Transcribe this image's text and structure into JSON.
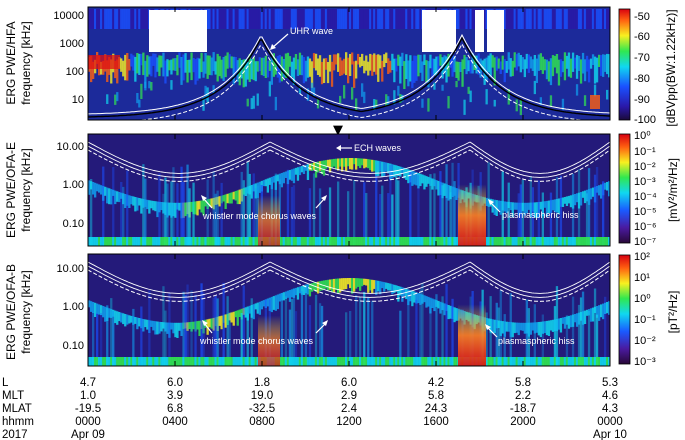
{
  "chart_data": [
    {
      "type": "heatmap",
      "panel": "HFA",
      "ylabel_lines": [
        "ERG PWE/HFA",
        "frequency [kHz]"
      ],
      "yscale": "log",
      "yticks": [
        "10000",
        "1000",
        "100",
        "10"
      ],
      "ylim": [
        2,
        20000
      ],
      "colorbar_label": "[dBVpp(BW:1.22kHz)]",
      "colorbar_ticks": [
        "-50",
        "-60",
        "-70",
        "-80",
        "-90",
        "-100"
      ],
      "colorbar_range": [
        -100,
        -50
      ],
      "annotations": [
        {
          "text": "UHR wave"
        }
      ],
      "data_gaps_hhmm": [
        [
          "0340",
          "0620"
        ],
        [
          "1420",
          "1545"
        ],
        [
          "1725",
          "1750"
        ],
        [
          "1805",
          "1840"
        ]
      ]
    },
    {
      "type": "heatmap",
      "panel": "OFA-E",
      "ylabel_lines": [
        "ERG PWE/OFA-E",
        "frequency [kHz]"
      ],
      "yscale": "log",
      "yticks": [
        "10.00",
        "1.00",
        "0.10"
      ],
      "ylim": [
        0.05,
        20
      ],
      "colorbar_label": "[mV²/m²/Hz]",
      "colorbar_ticks": [
        "10⁰",
        "10⁻¹",
        "10⁻²",
        "10⁻³",
        "10⁻⁴",
        "10⁻⁵",
        "10⁻⁶",
        "10⁻⁷"
      ],
      "colorbar_range": [
        1e-07,
        1
      ],
      "annotations": [
        {
          "text": "ECH waves"
        },
        {
          "text": "whistler mode chorus waves"
        },
        {
          "text": "plasmaspheric hiss"
        }
      ]
    },
    {
      "type": "heatmap",
      "panel": "OFA-B",
      "ylabel_lines": [
        "ERG PWE/OFA-B",
        "frequency [kHz]"
      ],
      "yscale": "log",
      "yticks": [
        "10.00",
        "1.00",
        "0.10"
      ],
      "ylim": [
        0.05,
        20
      ],
      "colorbar_label": "[pT²/Hz]",
      "colorbar_ticks": [
        "10²",
        "10¹",
        "10⁰",
        "10⁻¹",
        "10⁻²",
        "10⁻³"
      ],
      "colorbar_range": [
        0.001,
        100
      ],
      "annotations": [
        {
          "text": "whistler mode chorus waves"
        },
        {
          "text": "plasmaspheric hiss"
        }
      ]
    }
  ],
  "ephemeris": {
    "row_labels": [
      "L",
      "MLT",
      "MLAT",
      "hhmm",
      "2017"
    ],
    "columns": [
      {
        "L": "4.7",
        "MLT": "1.0",
        "MLAT": "-19.5",
        "hhmm": "0000",
        "date": "Apr 09"
      },
      {
        "L": "6.0",
        "MLT": "3.9",
        "MLAT": "6.8",
        "hhmm": "0400",
        "date": ""
      },
      {
        "L": "1.8",
        "MLT": "19.0",
        "MLAT": "-32.5",
        "hhmm": "0800",
        "date": ""
      },
      {
        "L": "6.0",
        "MLT": "2.9",
        "MLAT": "2.4",
        "hhmm": "1200",
        "date": ""
      },
      {
        "L": "4.2",
        "MLT": "5.8",
        "MLAT": "24.3",
        "hhmm": "1600",
        "date": ""
      },
      {
        "L": "5.8",
        "MLT": "2.2",
        "MLAT": "-18.7",
        "hhmm": "2000",
        "date": ""
      },
      {
        "L": "5.3",
        "MLT": "4.6",
        "MLAT": "4.3",
        "hhmm": "0000",
        "date": "Apr 10"
      }
    ]
  },
  "colors": {
    "background": "#1c1e8c",
    "gap": "#ffffff",
    "curve": "#ffffff"
  },
  "marker": "▼"
}
